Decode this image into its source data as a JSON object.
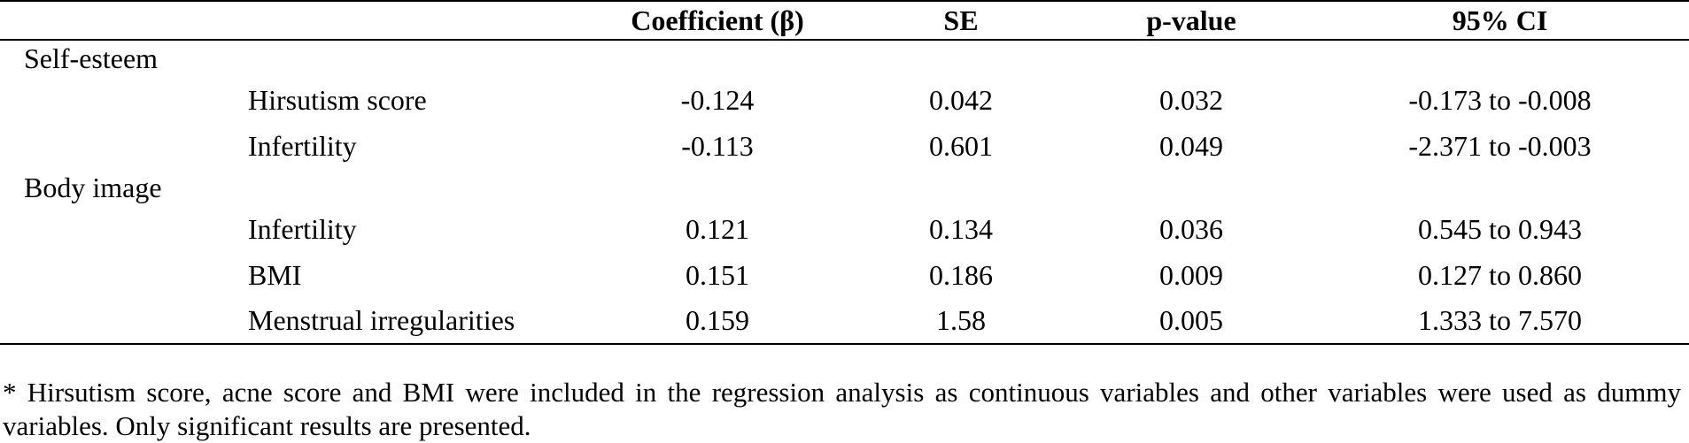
{
  "table": {
    "headers": {
      "group": "",
      "variable": "",
      "coefficient": "Coefficient (β)",
      "se": "SE",
      "p_value": "p-value",
      "ci": "95% CI"
    },
    "groups": [
      {
        "label": "Self-esteem",
        "rows": [
          {
            "variable": "Hirsutism score",
            "coefficient": "-0.124",
            "se": "0.042",
            "p_value": "0.032",
            "ci": "-0.173 to -0.008"
          },
          {
            "variable": "Infertility",
            "coefficient": "-0.113",
            "se": "0.601",
            "p_value": "0.049",
            "ci": "-2.371 to -0.003"
          }
        ]
      },
      {
        "label": "Body image",
        "rows": [
          {
            "variable": "Infertility",
            "coefficient": "0.121",
            "se": "0.134",
            "p_value": "0.036",
            "ci": "0.545 to 0.943"
          },
          {
            "variable": "BMI",
            "coefficient": "0.151",
            "se": "0.186",
            "p_value": "0.009",
            "ci": "0.127 to 0.860"
          },
          {
            "variable": "Menstrual irregularities",
            "coefficient": "0.159",
            "se": "1.58",
            "p_value": "0.005",
            "ci": "1.333 to 7.570"
          }
        ]
      }
    ]
  },
  "footnote": "* Hirsutism score, acne score and BMI were included in the regression analysis as continuous variables and other variables were used as dummy variables. Only significant results are presented."
}
